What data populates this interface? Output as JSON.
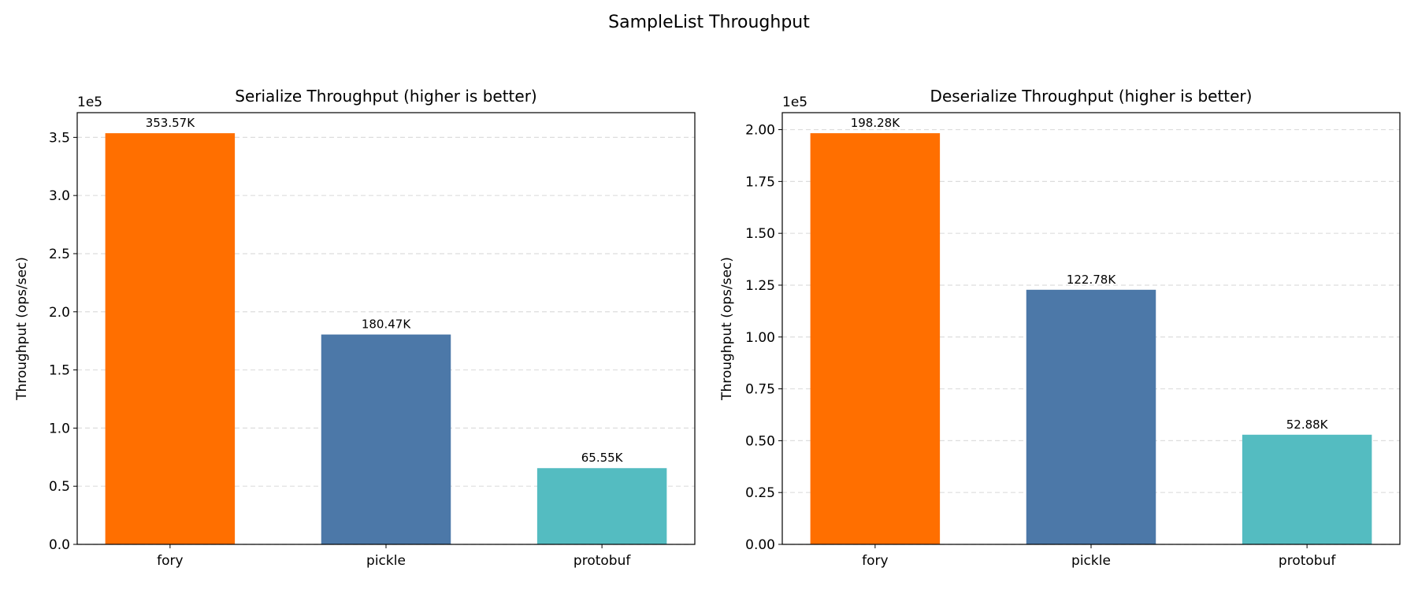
{
  "title": "SampleList Throughput",
  "chart_data": [
    {
      "type": "bar",
      "title": "Serialize Throughput (higher is better)",
      "xlabel": "",
      "ylabel": "Throughput (ops/sec)",
      "y_offset_label": "1e5",
      "categories": [
        "fory",
        "pickle",
        "protobuf"
      ],
      "values": [
        353570,
        180470,
        65550
      ],
      "data_labels": [
        "353.57K",
        "180.47K",
        "65.55K"
      ],
      "colors": [
        "#ff6f00",
        "#4c78a8",
        "#54bcc1"
      ],
      "yticks": [
        0,
        50000,
        100000,
        150000,
        200000,
        250000,
        300000,
        350000
      ],
      "ytick_labels": [
        "0.0",
        "0.5",
        "1.0",
        "1.5",
        "2.0",
        "2.5",
        "3.0",
        "3.5"
      ],
      "ylim": [
        0,
        371250
      ],
      "grid": "y-dashed"
    },
    {
      "type": "bar",
      "title": "Deserialize Throughput (higher is better)",
      "xlabel": "",
      "ylabel": "Throughput (ops/sec)",
      "y_offset_label": "1e5",
      "categories": [
        "fory",
        "pickle",
        "protobuf"
      ],
      "values": [
        198280,
        122780,
        52880
      ],
      "data_labels": [
        "198.28K",
        "122.78K",
        "52.88K"
      ],
      "colors": [
        "#ff6f00",
        "#4c78a8",
        "#54bcc1"
      ],
      "yticks": [
        0,
        25000,
        50000,
        75000,
        100000,
        125000,
        150000,
        175000,
        200000
      ],
      "ytick_labels": [
        "0.00",
        "0.25",
        "0.50",
        "0.75",
        "1.00",
        "1.25",
        "1.50",
        "1.75",
        "2.00"
      ],
      "ylim": [
        0,
        208190
      ],
      "grid": "y-dashed"
    }
  ]
}
